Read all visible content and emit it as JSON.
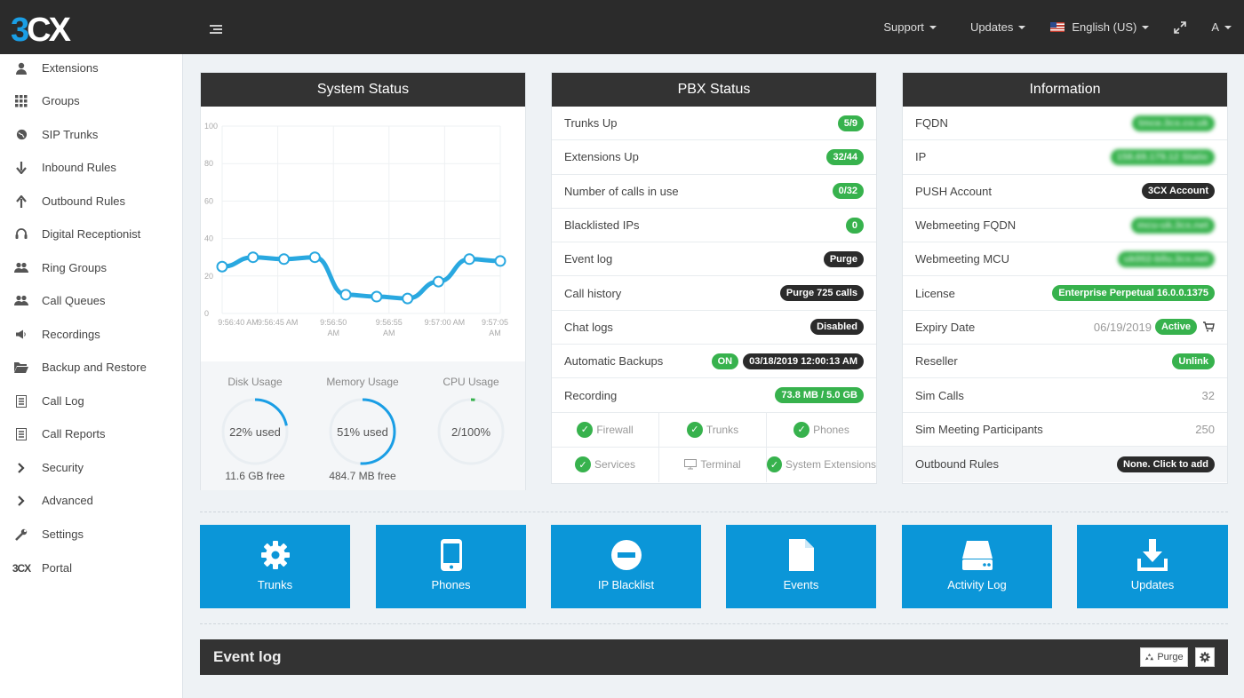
{
  "logo": {
    "three": "3",
    "cx": "CX"
  },
  "topnav": {
    "support": "Support",
    "updates": "Updates",
    "language": "English (US)",
    "user": "A"
  },
  "sidebar": {
    "items": [
      {
        "label": "Extensions",
        "icon": "user-icon"
      },
      {
        "label": "Groups",
        "icon": "grid-icon"
      },
      {
        "label": "SIP Trunks",
        "icon": "globe-icon"
      },
      {
        "label": "Inbound Rules",
        "icon": "arrow-down-icon"
      },
      {
        "label": "Outbound Rules",
        "icon": "arrow-up-icon"
      },
      {
        "label": "Digital Receptionist",
        "icon": "headset-icon"
      },
      {
        "label": "Ring Groups",
        "icon": "users-icon"
      },
      {
        "label": "Call Queues",
        "icon": "users-icon"
      },
      {
        "label": "Recordings",
        "icon": "speaker-icon"
      },
      {
        "label": "Backup and Restore",
        "icon": "folder-icon"
      },
      {
        "label": "Call Log",
        "icon": "list-icon"
      },
      {
        "label": "Call Reports",
        "icon": "list-icon"
      },
      {
        "label": "Security",
        "icon": "chevron-right-icon"
      },
      {
        "label": "Advanced",
        "icon": "chevron-right-icon"
      },
      {
        "label": "Settings",
        "icon": "wrench-icon"
      },
      {
        "label": "Portal",
        "icon": "3cx-logo-icon"
      }
    ]
  },
  "system_status": {
    "title": "System Status",
    "disk": {
      "label": "Disk Usage",
      "value": "22% used",
      "free": "11.6 GB free",
      "percent": 22
    },
    "memory": {
      "label": "Memory Usage",
      "value": "51% used",
      "free": "484.7 MB free",
      "percent": 51
    },
    "cpu": {
      "label": "CPU Usage",
      "value": "2/100%",
      "percent": 2
    }
  },
  "chart_data": {
    "type": "line",
    "ylim": [
      0,
      100
    ],
    "yticks": [
      "0",
      "20",
      "40",
      "60",
      "80",
      "100"
    ],
    "xticks": [
      "9:56:40 AM",
      "9:56:45 AM",
      "9:56:50 AM",
      "9:56:55 AM",
      "9:57:00 AM",
      "9:57:05 AM"
    ],
    "x": [
      0,
      1,
      2,
      3,
      4,
      5,
      6,
      7,
      8,
      9
    ],
    "series": [
      {
        "values": [
          25,
          30,
          29,
          30,
          10,
          9,
          8,
          17,
          29,
          28
        ]
      }
    ],
    "grid": true
  },
  "pbx_status": {
    "title": "PBX Status",
    "rows": [
      {
        "label": "Trunks Up",
        "badge": "5/9"
      },
      {
        "label": "Extensions Up",
        "badge": "32/44"
      },
      {
        "label": "Number of calls in use",
        "badge": "0/32"
      },
      {
        "label": "Blacklisted IPs",
        "badge": "0"
      },
      {
        "label": "Event log",
        "badge": "Purge"
      },
      {
        "label": "Call history",
        "badge": "Purge 725 calls"
      },
      {
        "label": "Chat logs",
        "badge": "Disabled"
      },
      {
        "label": "Automatic Backups",
        "badge_on": "ON",
        "badge": "03/18/2019 12:00:13 AM"
      },
      {
        "label": "Recording",
        "badge": "73.8 MB / 5.0 GB"
      }
    ],
    "services": [
      "Firewall",
      "Trunks",
      "Phones",
      "Services",
      "Terminal",
      "System Extensions"
    ]
  },
  "information": {
    "title": "Information",
    "rows": [
      {
        "label": "FQDN",
        "badge": "tmce.3cx.co.uk"
      },
      {
        "label": "IP",
        "badge": "158.69.179.12 Static"
      },
      {
        "label": "PUSH Account",
        "badge": "3CX Account"
      },
      {
        "label": "Webmeeting FQDN",
        "badge": "mcu-uk.3cx.net"
      },
      {
        "label": "Webmeeting MCU",
        "badge": "uk002-bllu.3cx.net"
      },
      {
        "label": "License",
        "badge": "Enterprise Perpetual 16.0.0.1375"
      },
      {
        "label": "Expiry Date",
        "value": "06/19/2019",
        "badge": "Active"
      },
      {
        "label": "Reseller",
        "badge": "Unlink"
      },
      {
        "label": "Sim Calls",
        "value": "32"
      },
      {
        "label": "Sim Meeting Participants",
        "value": "250"
      },
      {
        "label": "Outbound Rules",
        "badge": "None. Click to add"
      }
    ]
  },
  "tiles": [
    {
      "label": "Trunks",
      "icon": "gear-icon"
    },
    {
      "label": "Phones",
      "icon": "phone-icon"
    },
    {
      "label": "IP Blacklist",
      "icon": "block-icon"
    },
    {
      "label": "Events",
      "icon": "file-icon"
    },
    {
      "label": "Activity Log",
      "icon": "drive-icon"
    },
    {
      "label": "Updates",
      "icon": "download-icon"
    }
  ],
  "event_log": {
    "title": "Event log",
    "purge": "Purge"
  },
  "colors": {
    "accent": "#0b96d8",
    "green": "#37b24d",
    "dark": "#333333"
  }
}
